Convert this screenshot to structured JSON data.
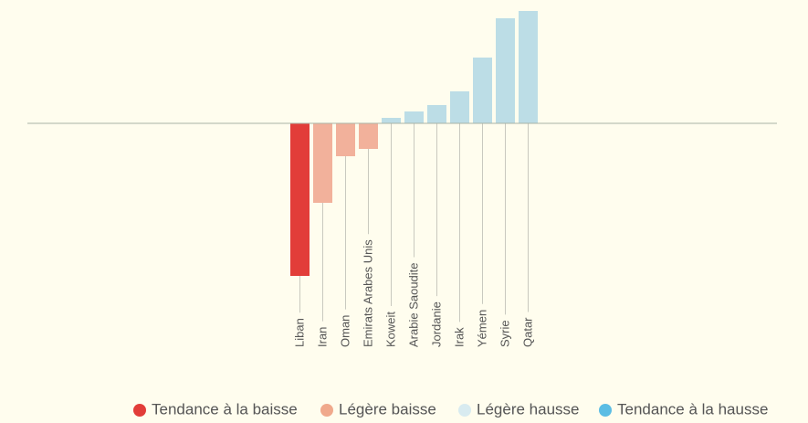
{
  "chart_data": {
    "type": "bar",
    "categories": [
      "Liban",
      "Iran",
      "Oman",
      "Emirats Arabes Unis",
      "Koweit",
      "Arabie Saoudite",
      "Jordanie",
      "Irak",
      "Yémen",
      "Syrie",
      "Qatar"
    ],
    "series": [
      {
        "name": "Tendance à la baisse",
        "color": "#e23d39",
        "values": [
          -167,
          null,
          null,
          null,
          null,
          null,
          null,
          null,
          null,
          null,
          null
        ]
      },
      {
        "name": "Légère baisse",
        "color": "#f2b19b",
        "values": [
          null,
          -87,
          -36,
          -28,
          null,
          null,
          null,
          null,
          null,
          null,
          null
        ]
      },
      {
        "name": "Légère hausse",
        "color": "#bcdde6",
        "values": [
          null,
          null,
          null,
          null,
          6,
          13,
          20,
          35,
          72,
          115,
          123
        ]
      },
      {
        "name": "Tendance à la hausse",
        "color": "#5bbde4",
        "values": [
          null,
          null,
          null,
          null,
          null,
          null,
          null,
          null,
          null,
          null,
          null
        ]
      }
    ],
    "legend_colors": [
      "#e23d39",
      "#f0a98c",
      "#d8ebf0",
      "#5bbde4"
    ],
    "ylim": [
      -170,
      125
    ]
  }
}
